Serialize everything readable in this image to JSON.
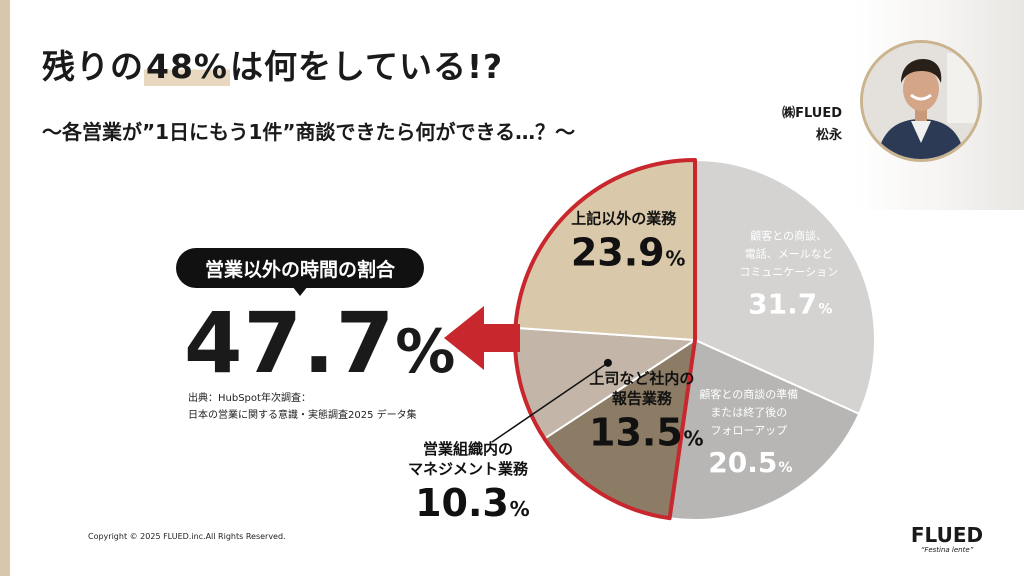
{
  "header": {
    "title_pre": "残りの",
    "title_hl": "48%",
    "title_post": "は何をしている!?",
    "subtitle": "〜各営業が”1日にもう1件”商談できたら何ができる…？〜"
  },
  "presenter": {
    "company": "㈱FLUED",
    "name": "松永"
  },
  "callout": {
    "label": "営業以外の時間の割合",
    "value": "47.7",
    "unit": "%"
  },
  "source": {
    "line1": "出典：HubSpot年次調査：",
    "line2": "日本の営業に関する意識・実態調査2025 データ集"
  },
  "footer": {
    "copyright": "Copyright © 2025 FLUED.inc.All Rights Reserved.",
    "logo_name": "FLUED",
    "logo_tagline": "“Festina lente”"
  },
  "colors": {
    "accent_red": "#c8272d",
    "beige": "#d9c8a9",
    "taupe": "#c3b6a8",
    "dark_brown": "#8c7b65",
    "light_gray": "#d4d3d2",
    "mid_gray": "#b7b6b5"
  },
  "chart_data": {
    "type": "pie",
    "start_angle_deg": 0,
    "direction": "clockwise",
    "slices": [
      {
        "label_lines": [
          "顧客との商談、",
          "電話、メールなど",
          "コミュニケーション"
        ],
        "value": 31.7,
        "display": "31.7",
        "color": "#d4d3d2",
        "text_color": "#ffffff",
        "highlight": false
      },
      {
        "label_lines": [
          "顧客との商談の準備",
          "または終了後の",
          "フォローアップ"
        ],
        "value": 20.5,
        "display": "20.5",
        "color": "#b7b6b5",
        "text_color": "#ffffff",
        "highlight": false
      },
      {
        "label_lines": [
          "上司など社内の",
          "報告業務"
        ],
        "value": 13.5,
        "display": "13.5",
        "color": "#8c7b65",
        "text_color": "#111111",
        "highlight": true
      },
      {
        "label_lines": [
          "営業組織内の",
          "マネジメント業務"
        ],
        "value": 10.3,
        "display": "10.3",
        "color": "#c3b6a8",
        "text_color": "#111111",
        "highlight": true,
        "external": true
      },
      {
        "label_lines": [
          "上記以外の業務"
        ],
        "value": 23.9,
        "display": "23.9",
        "color": "#d9c8a9",
        "text_color": "#111111",
        "highlight": true
      }
    ],
    "unit": "%"
  }
}
